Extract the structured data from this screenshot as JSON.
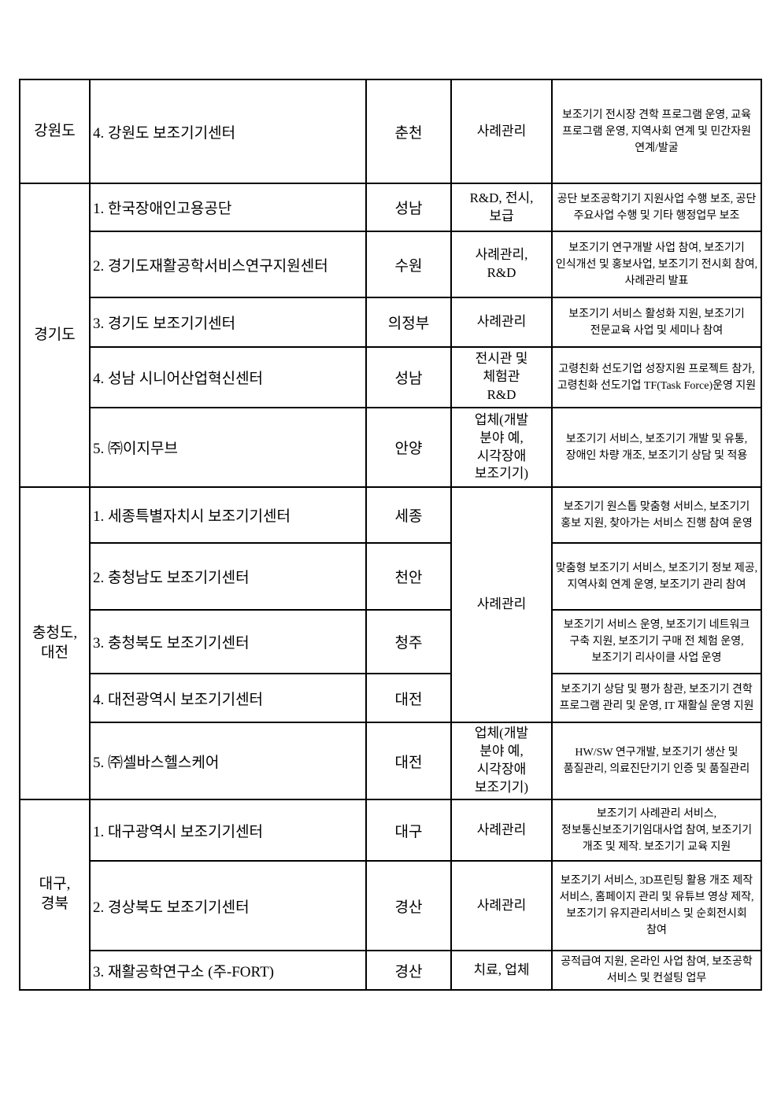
{
  "page": {
    "background": "#ffffff",
    "text_color": "#000000",
    "border_color": "#000000"
  },
  "table": {
    "columns": [
      "region",
      "center_name",
      "city",
      "category",
      "description"
    ],
    "sections": [
      {
        "region": "강원도",
        "rows": [
          {
            "name": "4. 강원도 보조기기센터",
            "city": "춘천",
            "category": "사례관리",
            "desc": "보조기기 전시장 견학 프로그램 운영, 교육 프로그램 운영, 지역사회 연계 및 민간자원 연계/발굴"
          }
        ]
      },
      {
        "region": "경기도",
        "rows": [
          {
            "name": "1. 한국장애인고용공단",
            "city": "성남",
            "category": "R&D, 전시,\n보급",
            "desc": "공단 보조공학기기 지원사업 수행 보조, 공단 주요사업 수행 및 기타 행정업무 보조"
          },
          {
            "name": "2. 경기도재활공학서비스연구지원센터",
            "city": "수원",
            "category": "사례관리,\nR&D",
            "desc": "보조기기 연구개발 사업 참여, 보조기기 인식개선 및 홍보사업, 보조기기 전시회 참여, 사례관리 발표"
          },
          {
            "name": "3. 경기도 보조기기센터",
            "city": "의정부",
            "category": "사례관리",
            "desc": "보조기기 서비스 활성화 지원, 보조기기 전문교육 사업 및 세미나 참여"
          },
          {
            "name": "4. 성남 시니어산업혁신센터",
            "city": "성남",
            "category": "전시관 및\n체험관\nR&D",
            "desc": "고령친화 선도기업 성장지원 프로젝트 참가, 고령친화 선도기업 TF(Task Force)운영 지원"
          },
          {
            "name": "5. ㈜이지무브",
            "city": "안양",
            "category": "업체(개발\n분야 예,\n시각장애\n보조기기)",
            "desc": "보조기기 서비스, 보조기기 개발 및 유통, 장애인 차량 개조, 보조기기 상담 및 적용"
          }
        ]
      },
      {
        "region": "충청도,\n대전",
        "rows": [
          {
            "name": "1. 세종특별자치시 보조기기센터",
            "city": "세종",
            "category": "사례관리",
            "category_rowspan": 4,
            "desc": "보조기기 원스톱 맞춤형 서비스, 보조기기 홍보 지원, 찾아가는 서비스 진행 참여 운영"
          },
          {
            "name": "2. 충청남도 보조기기센터",
            "city": "천안",
            "category": null,
            "desc": "맞춤형 보조기기 서비스, 보조기기 정보 제공, 지역사회 연계 운영, 보조기기 관리 참여"
          },
          {
            "name": "3. 충청북도 보조기기센터",
            "city": "청주",
            "category": null,
            "desc": "보조기기 서비스 운영, 보조기기 네트워크 구축 지원, 보조기기 구매 전 체험 운영, 보조기기 리사이클 사업 운영"
          },
          {
            "name": "4. 대전광역시 보조기기센터",
            "city": "대전",
            "category": null,
            "desc": "보조기기 상담 및 평가 참관, 보조기기 견학 프로그램 관리 및 운영, IT 재활실 운영 지원"
          },
          {
            "name": "5. ㈜셀바스헬스케어",
            "city": "대전",
            "category": "업체(개발\n분야 예,\n시각장애\n보조기기)",
            "desc": "HW/SW 연구개발, 보조기기 생산 및 품질관리, 의료진단기기 인증 및 품질관리"
          }
        ]
      },
      {
        "region": "대구,\n경북",
        "rows": [
          {
            "name": "1. 대구광역시 보조기기센터",
            "city": "대구",
            "category": "사례관리",
            "desc": "보조기기 사례관리 서비스, 정보통신보조기기임대사업 참여, 보조기기 개조 및 제작. 보조기기 교육 지원"
          },
          {
            "name": "2. 경상북도 보조기기센터",
            "city": "경산",
            "category": "사례관리",
            "desc": "보조기기 서비스, 3D프린팅 활용 개조 제작 서비스, 홈페이지 관리 및 유튜브 영상 제작, 보조기기 유지관리서비스 및 순회전시회 참여"
          },
          {
            "name": "3. 재활공학연구소 (주-FORT)",
            "city": "경산",
            "category": "치료, 업체",
            "desc": "공적급여 지원, 온라인 사업 참여, 보조공학 서비스 및 컨설팅 업무"
          }
        ]
      }
    ]
  }
}
